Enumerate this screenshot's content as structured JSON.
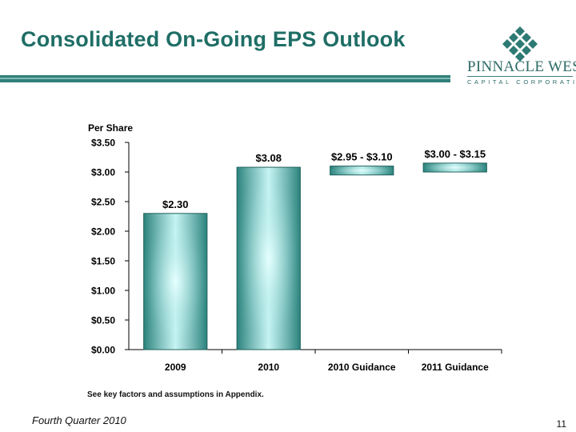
{
  "header": {
    "title": "Consolidated On-Going EPS Outlook"
  },
  "logo": {
    "name": "PINNACLE WEST",
    "tagline": "CAPITAL CORPORATION"
  },
  "footer": {
    "left": "Fourth Quarter 2010",
    "page": "11"
  },
  "note": "See key factors and assumptions in Appendix.",
  "colors": {
    "title": "#1f6e66",
    "bar_edge": "#1d6a64",
    "bar_center": "#d8ffff",
    "bar_mid": "#8fd3cf",
    "bar_dark": "#2f8a84"
  },
  "chart_data": {
    "type": "bar",
    "ylabel": "Per Share",
    "ylim": [
      0,
      3.5
    ],
    "yticks": [
      "$0.00",
      "$0.50",
      "$1.00",
      "$1.50",
      "$2.00",
      "$2.50",
      "$3.00",
      "$3.50"
    ],
    "ytick_values": [
      0,
      0.5,
      1.0,
      1.5,
      2.0,
      2.5,
      3.0,
      3.5
    ],
    "categories": [
      "2009",
      "2010",
      "2010 Guidance",
      "2011 Guidance"
    ],
    "values": [
      2.3,
      3.08,
      null,
      null
    ],
    "ranges": [
      null,
      null,
      [
        2.95,
        3.1
      ],
      [
        3.0,
        3.15
      ]
    ],
    "labels": [
      "$2.30",
      "$3.08",
      "$2.95 - $3.10",
      "$3.00 - $3.15"
    ],
    "grid": false,
    "legend": "none"
  }
}
